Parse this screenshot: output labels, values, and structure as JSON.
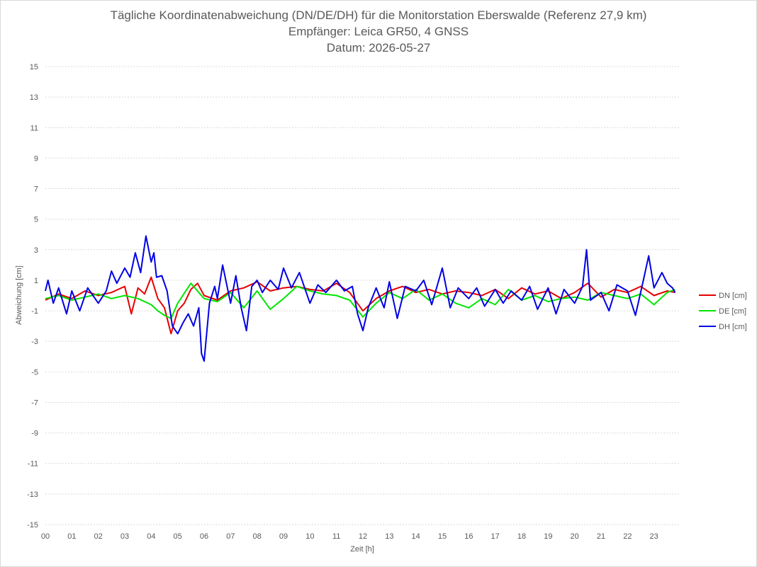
{
  "chart_data": {
    "type": "line",
    "title": "Tägliche Koordinatenabweichung (DN/DE/DH) für die Monitorstation Eberswalde (Referenz 27,9 km)",
    "subtitle_1": "Empfänger: Leica GR50, 4 GNSS",
    "subtitle_2": "Datum: 2026-05-27",
    "xlabel": "Zeit [h]",
    "ylabel": "Abweichung [cm]",
    "xlim": [
      0,
      24
    ],
    "ylim": [
      -15,
      15
    ],
    "x_ticks": [
      "00",
      "01",
      "02",
      "03",
      "04",
      "05",
      "06",
      "07",
      "08",
      "09",
      "10",
      "11",
      "12",
      "13",
      "14",
      "15",
      "16",
      "17",
      "18",
      "19",
      "20",
      "21",
      "22",
      "23"
    ],
    "y_ticks": [
      15,
      13,
      11,
      9,
      7,
      5,
      3,
      1,
      -1,
      -3,
      -5,
      -7,
      -9,
      -11,
      -13,
      -15
    ],
    "grid": "horizontal dotted",
    "legend_position": "right",
    "series": [
      {
        "name": "DN [cm]",
        "color": "#e60000",
        "x": [
          0,
          0.5,
          1,
          1.5,
          2,
          2.5,
          3,
          3.25,
          3.5,
          3.75,
          4,
          4.25,
          4.5,
          4.75,
          5,
          5.25,
          5.5,
          5.75,
          6,
          6.5,
          7,
          7.5,
          8,
          8.5,
          9,
          9.5,
          10,
          10.5,
          11,
          11.5,
          12,
          12.5,
          13,
          13.5,
          14,
          14.5,
          15,
          15.5,
          16,
          16.5,
          17,
          17.5,
          18,
          18.5,
          19,
          19.5,
          20,
          20.5,
          21,
          21.5,
          22,
          22.5,
          23,
          23.5,
          23.8
        ],
        "y": [
          -0.3,
          0.1,
          -0.2,
          0.3,
          0.0,
          0.2,
          0.6,
          -1.2,
          0.5,
          0.1,
          1.2,
          -0.2,
          -0.8,
          -2.5,
          -1.0,
          -0.5,
          0.4,
          0.8,
          0.0,
          -0.3,
          0.3,
          0.5,
          0.9,
          0.3,
          0.5,
          0.6,
          0.4,
          0.3,
          0.8,
          0.2,
          -1.0,
          -0.2,
          0.3,
          0.6,
          0.2,
          0.4,
          0.1,
          0.3,
          0.2,
          0.0,
          0.4,
          -0.2,
          0.5,
          0.1,
          0.3,
          -0.2,
          0.2,
          0.8,
          -0.1,
          0.4,
          0.2,
          0.6,
          0.0,
          0.3,
          0.2
        ]
      },
      {
        "name": "DE [cm]",
        "color": "#00e600",
        "x": [
          0,
          0.5,
          1,
          1.5,
          2,
          2.5,
          3,
          3.5,
          4,
          4.25,
          4.5,
          4.75,
          5,
          5.5,
          6,
          6.5,
          7,
          7.5,
          8,
          8.5,
          9,
          9.5,
          10,
          10.5,
          11,
          11.5,
          12,
          12.5,
          13,
          13.5,
          14,
          14.5,
          15,
          15.5,
          16,
          16.5,
          17,
          17.5,
          18,
          18.5,
          19,
          19.5,
          20,
          20.5,
          21,
          21.5,
          22,
          22.5,
          23,
          23.5,
          23.8
        ],
        "y": [
          -0.2,
          0.0,
          -0.3,
          -0.1,
          0.1,
          -0.2,
          0.0,
          -0.2,
          -0.6,
          -1.0,
          -1.3,
          -1.5,
          -0.5,
          0.8,
          -0.2,
          -0.4,
          0.2,
          -0.8,
          0.3,
          -0.9,
          -0.2,
          0.6,
          0.3,
          0.1,
          0.0,
          -0.3,
          -1.4,
          -0.5,
          0.2,
          -0.2,
          0.4,
          -0.3,
          0.1,
          -0.5,
          -0.8,
          -0.2,
          -0.6,
          0.4,
          -0.3,
          0.0,
          -0.4,
          -0.2,
          -0.1,
          -0.3,
          0.2,
          0.0,
          -0.2,
          0.1,
          -0.6,
          0.2,
          0.4
        ]
      },
      {
        "name": "DH [cm]",
        "color": "#0000e6",
        "x": [
          0,
          0.1,
          0.3,
          0.5,
          0.8,
          1,
          1.3,
          1.6,
          2,
          2.3,
          2.5,
          2.7,
          3,
          3.2,
          3.4,
          3.6,
          3.8,
          4,
          4.1,
          4.2,
          4.4,
          4.6,
          4.8,
          5,
          5.2,
          5.4,
          5.6,
          5.8,
          5.9,
          6,
          6.2,
          6.4,
          6.5,
          6.7,
          7,
          7.2,
          7.4,
          7.6,
          7.8,
          8,
          8.2,
          8.5,
          8.8,
          9,
          9.3,
          9.6,
          10,
          10.3,
          10.6,
          11,
          11.3,
          11.6,
          11.8,
          12,
          12.2,
          12.5,
          12.8,
          13,
          13.3,
          13.6,
          14,
          14.3,
          14.6,
          15,
          15.3,
          15.6,
          16,
          16.3,
          16.6,
          17,
          17.3,
          17.6,
          18,
          18.3,
          18.6,
          19,
          19.3,
          19.6,
          20,
          20.3,
          20.45,
          20.6,
          21,
          21.3,
          21.6,
          22,
          22.3,
          22.6,
          22.8,
          23,
          23.3,
          23.5,
          23.7,
          23.8
        ],
        "y": [
          0.3,
          1.0,
          -0.5,
          0.5,
          -1.2,
          0.3,
          -1.0,
          0.5,
          -0.5,
          0.3,
          1.6,
          0.8,
          1.8,
          1.2,
          2.8,
          1.5,
          3.9,
          2.2,
          2.8,
          1.2,
          1.3,
          0.3,
          -2.0,
          -2.5,
          -1.8,
          -1.2,
          -2.0,
          -0.8,
          -3.8,
          -4.3,
          -0.5,
          0.6,
          -0.2,
          2.0,
          -0.5,
          1.3,
          -0.8,
          -2.3,
          0.6,
          1.0,
          0.2,
          1.0,
          0.4,
          1.8,
          0.5,
          1.5,
          -0.5,
          0.7,
          0.2,
          1.0,
          0.3,
          0.6,
          -1.2,
          -2.3,
          -0.8,
          0.5,
          -0.8,
          0.9,
          -1.5,
          0.6,
          0.3,
          1.0,
          -0.6,
          1.8,
          -0.8,
          0.5,
          -0.2,
          0.5,
          -0.7,
          0.4,
          -0.5,
          0.3,
          -0.3,
          0.6,
          -0.9,
          0.5,
          -1.2,
          0.4,
          -0.5,
          0.6,
          3.0,
          -0.3,
          0.2,
          -1.0,
          0.7,
          0.3,
          -1.3,
          1.0,
          2.6,
          0.5,
          1.5,
          0.8,
          0.5,
          0.2
        ]
      }
    ]
  }
}
